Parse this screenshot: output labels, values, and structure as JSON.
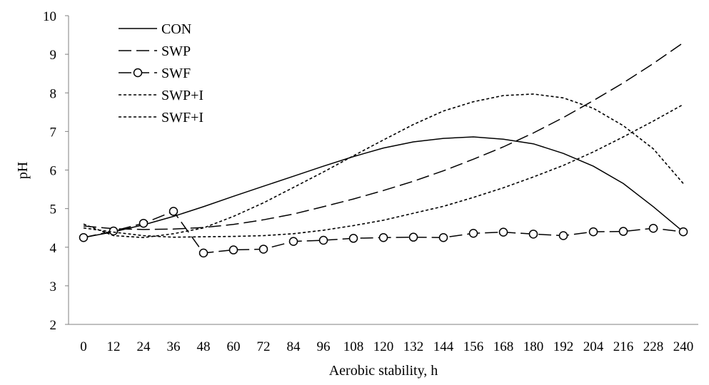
{
  "chart_data": {
    "type": "line",
    "title": "",
    "xlabel": "Aerobic stability, h",
    "ylabel": "pH",
    "ylim": [
      2,
      10
    ],
    "yticks": [
      "2",
      "3",
      "4",
      "5",
      "6",
      "7",
      "8",
      "9",
      "10"
    ],
    "x": [
      0,
      12,
      24,
      36,
      48,
      60,
      72,
      84,
      96,
      108,
      120,
      132,
      144,
      156,
      168,
      180,
      192,
      204,
      216,
      228,
      240
    ],
    "xticks": [
      "0",
      "12",
      "24",
      "36",
      "48",
      "60",
      "72",
      "84",
      "96",
      "108",
      "120",
      "132",
      "144",
      "156",
      "168",
      "180",
      "192",
      "204",
      "216",
      "228",
      "240"
    ],
    "grid": false,
    "legend_position": "top-left",
    "series": [
      {
        "name": "CON",
        "style": "solid",
        "values": [
          4.25,
          4.4,
          4.58,
          4.8,
          5.05,
          5.32,
          5.58,
          5.84,
          6.1,
          6.35,
          6.57,
          6.73,
          6.82,
          6.86,
          6.8,
          6.68,
          6.43,
          6.1,
          5.65,
          5.05,
          4.4
        ]
      },
      {
        "name": "SWP",
        "style": "long-dash",
        "values": [
          4.55,
          4.48,
          4.46,
          4.47,
          4.51,
          4.59,
          4.71,
          4.86,
          5.05,
          5.25,
          5.47,
          5.71,
          5.98,
          6.28,
          6.6,
          6.96,
          7.36,
          7.8,
          8.26,
          8.76,
          9.3
        ]
      },
      {
        "name": "SWF",
        "style": "dash-circle",
        "values": [
          4.25,
          4.42,
          4.62,
          4.93,
          3.85,
          3.93,
          3.95,
          4.15,
          4.18,
          4.23,
          4.25,
          4.26,
          4.25,
          4.36,
          4.39,
          4.34,
          4.3,
          4.4,
          4.41,
          4.49,
          4.4
        ]
      },
      {
        "name": "SWP+I",
        "style": "short-dash",
        "values": [
          4.5,
          4.39,
          4.3,
          4.26,
          4.27,
          4.28,
          4.3,
          4.35,
          4.44,
          4.56,
          4.7,
          4.88,
          5.06,
          5.29,
          5.54,
          5.82,
          6.12,
          6.47,
          6.86,
          7.27,
          7.7
        ]
      },
      {
        "name": "SWF+I",
        "style": "short-dash",
        "values": [
          4.6,
          4.3,
          4.25,
          4.35,
          4.5,
          4.8,
          5.15,
          5.55,
          5.95,
          6.37,
          6.78,
          7.18,
          7.53,
          7.77,
          7.93,
          7.97,
          7.87,
          7.6,
          7.15,
          6.55,
          5.65
        ]
      }
    ]
  }
}
